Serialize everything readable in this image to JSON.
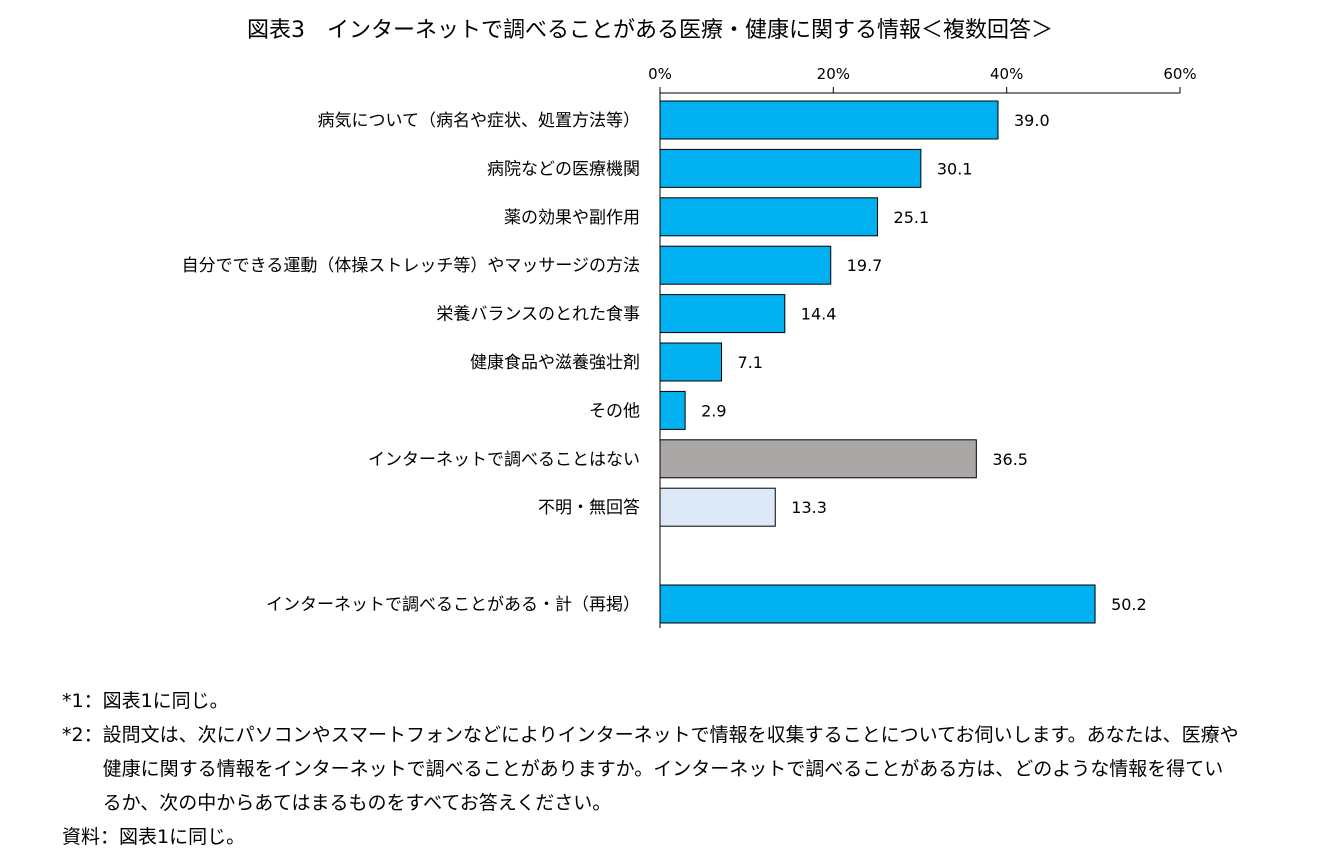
{
  "chart_data": {
    "type": "bar",
    "orientation": "horizontal",
    "title": "図表3　インターネットで調べることがある医療・健康に関する情報＜複数回答＞",
    "categories": [
      "病気について（病名や症状、処置方法等）",
      "病院などの医療機関",
      "薬の効果や副作用",
      "自分でできる運動（体操ストレッチ等）やマッサージの方法",
      "栄養バランスのとれた食事",
      "健康食品や滋養強壮剤",
      "その他",
      "インターネットで調べることはない",
      "不明・無回答",
      "インターネットで調べることがある・計（再掲）"
    ],
    "values": [
      39.0,
      30.1,
      25.1,
      19.7,
      14.4,
      7.1,
      2.9,
      36.5,
      13.3,
      50.2
    ],
    "value_labels": [
      "39.0",
      "30.1",
      "25.1",
      "19.7",
      "14.4",
      "7.1",
      "2.9",
      "36.5",
      "13.3",
      "50.2"
    ],
    "bar_colors": [
      "#00b0f0",
      "#00b0f0",
      "#00b0f0",
      "#00b0f0",
      "#00b0f0",
      "#00b0f0",
      "#00b0f0",
      "#aba7a7",
      "#dde9f6",
      "#00b0f0"
    ],
    "xlim": [
      0,
      60
    ],
    "xticks": [
      0,
      20,
      40,
      60
    ],
    "xtick_labels": [
      "0%",
      "20%",
      "40%",
      "60%"
    ],
    "xaxis_position": "top",
    "grid": false,
    "xlabel": "",
    "ylabel": ""
  },
  "notes": [
    {
      "mark": "*1：",
      "text": "図表1に同じ。"
    },
    {
      "mark": "*2：",
      "text": "設問文は、次にパソコンやスマートフォンなどによりインターネットで情報を収集することについてお伺いします。あなたは、医療や健康に関する情報をインターネットで調べることがありますか。インターネットで調べることがある方は、どのような情報を得ているか、次の中からあてはまるものをすべてお答えください。"
    },
    {
      "mark": "資料：",
      "text": "図表1に同じ。"
    }
  ]
}
